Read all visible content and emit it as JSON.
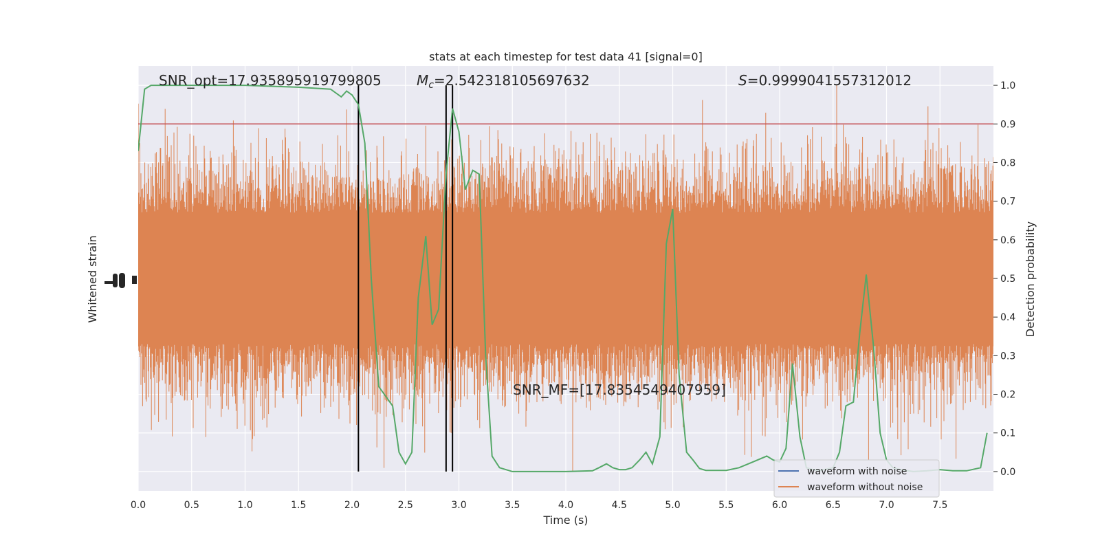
{
  "chart_data": {
    "type": "line",
    "title": "stats at each timestep for test data 41 [signal=0]",
    "xlabel": "Time (s)",
    "ylabel_left": "Whitened strain",
    "ylabel_right": "Detection probability",
    "xlim": [
      0.0,
      8.0
    ],
    "ylim_right": [
      -0.05,
      1.05
    ],
    "x_ticks": [
      "0.0",
      "0.5",
      "1.0",
      "1.5",
      "2.0",
      "2.5",
      "3.0",
      "3.5",
      "4.0",
      "4.5",
      "5.0",
      "5.5",
      "6.0",
      "6.5",
      "7.0",
      "7.5"
    ],
    "y_ticks_right": [
      "0.0",
      "0.1",
      "0.2",
      "0.3",
      "0.4",
      "0.5",
      "0.6",
      "0.7",
      "0.8",
      "0.9",
      "1.0"
    ],
    "grid": true,
    "legend_position": "lower-right",
    "annotations": {
      "snr_opt": "SNR_opt=17.935895919799805",
      "mc_symbol": "M",
      "mc_sub": "c",
      "mc_value": "=2.542318105697632",
      "s_symbol": "S",
      "s_value": "=0.9999041557312012",
      "snr_mf": "SNR_MF=[17.8354549407959]"
    },
    "threshold": 0.9,
    "vertical_lines": [
      2.06,
      2.88,
      2.94
    ],
    "series": [
      {
        "name": "waveform with noise",
        "color": "#4c72b0",
        "kind": "strain"
      },
      {
        "name": "waveform without noise",
        "color": "#dd8452",
        "kind": "strain",
        "band_center": 0.5,
        "band_half_width": 0.1
      },
      {
        "name": "detection probability",
        "color": "#55a868",
        "x": [
          0.0,
          0.06,
          0.12,
          0.25,
          0.5,
          1.0,
          1.5,
          1.8,
          1.9,
          1.95,
          2.0,
          2.06,
          2.12,
          2.18,
          2.25,
          2.38,
          2.44,
          2.5,
          2.56,
          2.62,
          2.69,
          2.75,
          2.81,
          2.88,
          2.94,
          3.0,
          3.06,
          3.13,
          3.19,
          3.25,
          3.31,
          3.38,
          3.5,
          3.75,
          4.0,
          4.25,
          4.31,
          4.38,
          4.44,
          4.5,
          4.56,
          4.62,
          4.69,
          4.75,
          4.81,
          4.88,
          4.94,
          5.0,
          5.06,
          5.13,
          5.19,
          5.25,
          5.31,
          5.5,
          5.62,
          5.75,
          5.88,
          5.94,
          6.0,
          6.06,
          6.12,
          6.19,
          6.25,
          6.31,
          6.38,
          6.5,
          6.56,
          6.62,
          6.69,
          6.75,
          6.81,
          6.88,
          6.94,
          7.0,
          7.06,
          7.13,
          7.25,
          7.38,
          7.5,
          7.62,
          7.75,
          7.88,
          7.94
        ],
        "y": [
          0.83,
          0.99,
          1.0,
          1.0,
          1.0,
          1.0,
          0.995,
          0.99,
          0.97,
          0.985,
          0.975,
          0.95,
          0.85,
          0.5,
          0.22,
          0.17,
          0.05,
          0.02,
          0.05,
          0.45,
          0.61,
          0.38,
          0.42,
          0.77,
          0.94,
          0.88,
          0.73,
          0.78,
          0.77,
          0.3,
          0.04,
          0.01,
          0.0,
          0.0,
          0.0,
          0.002,
          0.01,
          0.02,
          0.01,
          0.005,
          0.005,
          0.01,
          0.03,
          0.05,
          0.02,
          0.09,
          0.59,
          0.68,
          0.25,
          0.05,
          0.03,
          0.008,
          0.003,
          0.003,
          0.01,
          0.025,
          0.04,
          0.03,
          0.025,
          0.06,
          0.28,
          0.09,
          0.01,
          0.005,
          0.003,
          0.01,
          0.05,
          0.17,
          0.18,
          0.36,
          0.51,
          0.32,
          0.1,
          0.03,
          0.01,
          0.005,
          0.0,
          0.002,
          0.005,
          0.002,
          0.002,
          0.01,
          0.1
        ]
      }
    ]
  }
}
